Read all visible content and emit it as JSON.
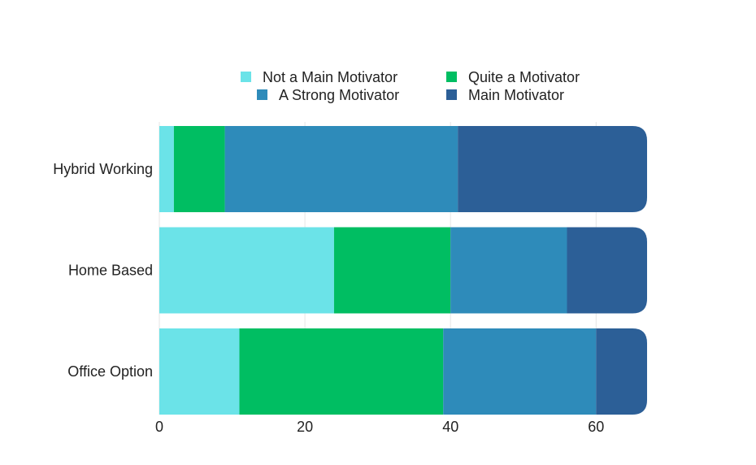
{
  "chart_data": {
    "type": "bar",
    "orientation": "horizontal",
    "stacked": true,
    "title": "",
    "xlabel": "",
    "ylabel": "",
    "categories": [
      "Hybrid Working",
      "Home Based",
      "Office Option"
    ],
    "series": [
      {
        "name": "Not a Main Motivator",
        "color": "#6be3e8",
        "values": [
          2,
          24,
          11
        ]
      },
      {
        "name": "Quite a Motivator",
        "color": "#00be62",
        "values": [
          7,
          16,
          28
        ]
      },
      {
        "name": "A Strong Motivator",
        "color": "#2e8bba",
        "values": [
          32,
          16,
          21
        ]
      },
      {
        "name": "Main Motivator",
        "color": "#2c5f97",
        "values": [
          26,
          11,
          7
        ]
      }
    ],
    "legend_order": [
      "Not a Main Motivator",
      "Quite a Motivator",
      "A Strong Motivator",
      "Main Motivator"
    ],
    "xlim": [
      0,
      67
    ],
    "xticks": [
      0,
      20,
      40,
      60
    ],
    "grid": true,
    "legend_position": "top"
  }
}
